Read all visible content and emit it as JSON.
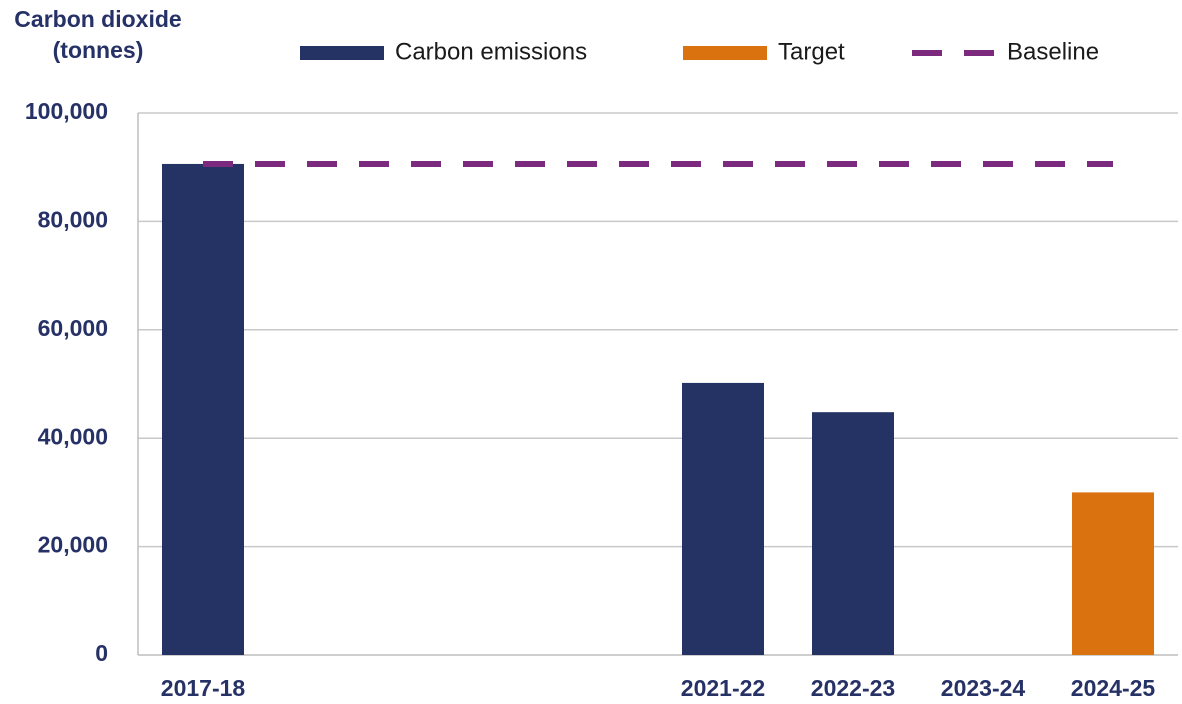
{
  "chart_data": {
    "type": "bar",
    "y_label": "Carbon dioxide (tonnes)",
    "categories": [
      "2017-18",
      null,
      null,
      null,
      "2021-22",
      "2022-23",
      "2023-24",
      "2024-25"
    ],
    "series": [
      {
        "name": "Carbon emissions",
        "type": "bar",
        "color": "#243264",
        "values": [
          90600,
          null,
          null,
          null,
          50200,
          44800,
          null,
          null
        ]
      },
      {
        "name": "Target",
        "type": "bar",
        "color": "#d9720f",
        "values": [
          null,
          null,
          null,
          null,
          null,
          null,
          null,
          30000
        ]
      },
      {
        "name": "Baseline",
        "type": "line",
        "dashed": true,
        "color": "#7b2a7e",
        "values": [
          90600,
          90600,
          90600,
          90600,
          90600,
          90600,
          90600,
          90600
        ]
      }
    ],
    "ylim": [
      0,
      100000
    ],
    "yticks": [
      0,
      {
        "value": 20000,
        "label": "20,000"
      },
      {
        "value": 40000,
        "label": "40,000"
      },
      {
        "value": 60000,
        "label": "60,000"
      },
      {
        "value": 80000,
        "label": "80,000"
      },
      {
        "value": 100000,
        "label": "100,000"
      }
    ],
    "grid": true,
    "legend": "top"
  }
}
